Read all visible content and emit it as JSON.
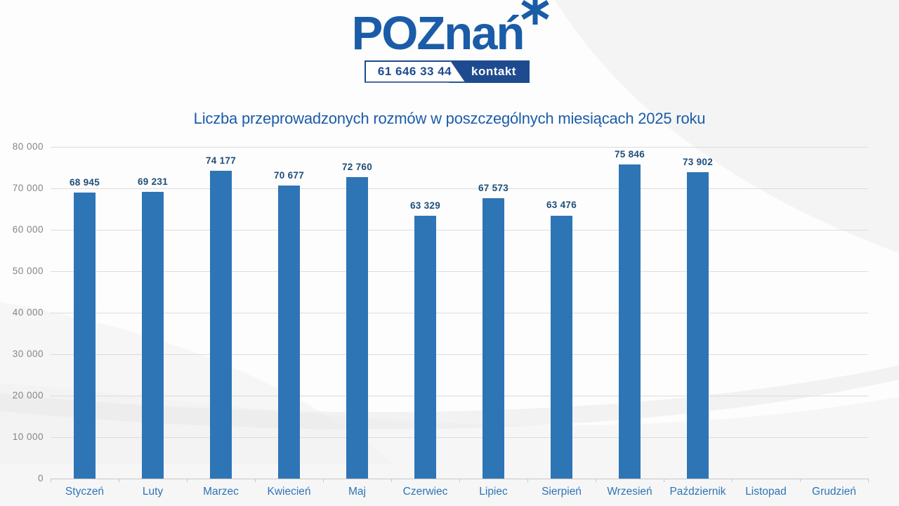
{
  "logo": {
    "poz": "POZ",
    "nan": "nań",
    "phone": "61 646 33 44",
    "contact_label": "kontakt"
  },
  "title": "Liczba przeprowadzonych rozmów w poszczególnych miesiącach 2025 roku",
  "colors": {
    "bar": "#2E75B6",
    "value_label": "#1F4E79",
    "month_label": "#2E75B6",
    "axis_label": "#858585",
    "gridline": "#DCDCDC",
    "logo_blue": "#1A5CA7",
    "contact_navy": "#1E4B8F",
    "title_blue": "#1B5CA8"
  },
  "chart_data": {
    "type": "bar",
    "title": "Liczba przeprowadzonych rozmów w poszczególnych miesiącach 2025 roku",
    "categories": [
      "Styczeń",
      "Luty",
      "Marzec",
      "Kwiecień",
      "Maj",
      "Czerwiec",
      "Lipiec",
      "Sierpień",
      "Wrzesień",
      "Październik",
      "Listopad",
      "Grudzień"
    ],
    "values": [
      68945,
      69231,
      74177,
      70677,
      72760,
      63329,
      67573,
      63476,
      75846,
      73902,
      null,
      null
    ],
    "value_labels": [
      "68 945",
      "69 231",
      "74 177",
      "70 677",
      "72 760",
      "63 329",
      "67 573",
      "63 476",
      "75 846",
      "73 902",
      null,
      null
    ],
    "y_tick_labels": [
      "0",
      "10 000",
      "20 000",
      "30 000",
      "40 000",
      "50 000",
      "60 000",
      "70 000",
      "80 000"
    ],
    "xlabel": "",
    "ylabel": "",
    "ylim": [
      0,
      80000
    ],
    "grid": true,
    "legend": "none"
  }
}
